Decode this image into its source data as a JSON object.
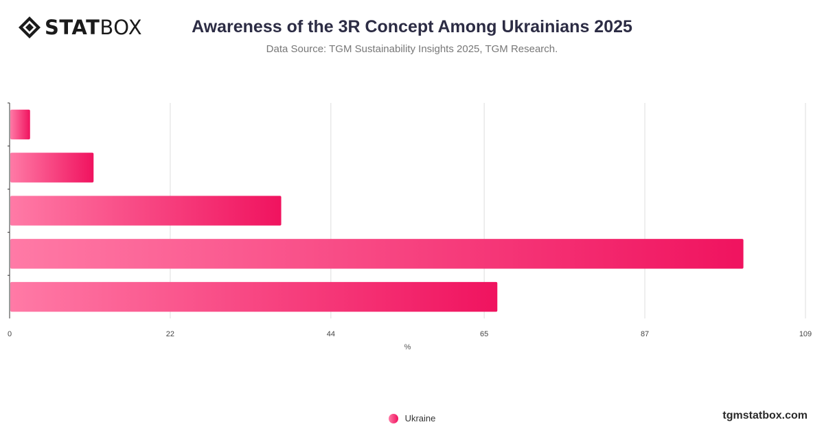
{
  "brand": {
    "logo_bold": "STAT",
    "logo_light": "BOX",
    "url": "tgmstatbox.com"
  },
  "colors": {
    "bar_start": "#ff7aa6",
    "bar_end": "#f0135f",
    "gridline": "#dddddd",
    "axis": "#333333"
  },
  "chart_data": {
    "type": "bar",
    "orientation": "horizontal",
    "title": "Awareness of the 3R Concept Among Ukrainians 2025",
    "subtitle": "Data Source: TGM Sustainability Insights 2025, TGM Research.",
    "categories": [
      "",
      "",
      "",
      "",
      ""
    ],
    "series": [
      {
        "name": "Ukraine",
        "values": [
          2.8,
          11.5,
          37.2,
          100.5,
          66.8
        ]
      }
    ],
    "xlabel": "%",
    "ylabel": "",
    "xlim": [
      0,
      109
    ],
    "xticks": [
      0,
      22,
      44,
      65,
      87,
      109
    ],
    "grid": true,
    "legend": "bottom-center"
  }
}
